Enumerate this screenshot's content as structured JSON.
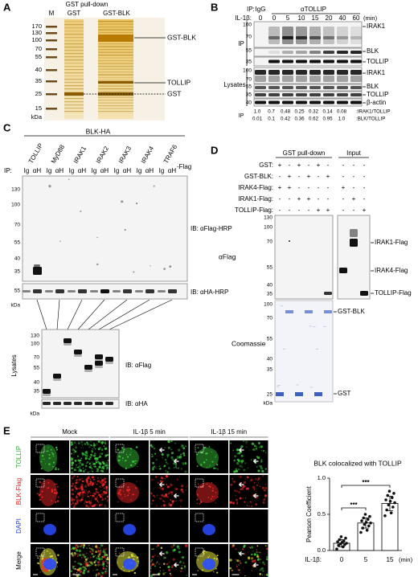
{
  "panel_a": {
    "label": "A",
    "title": "GST pull-down",
    "lanes": [
      "M",
      "GST",
      "GST-BLK"
    ],
    "markers": [
      170,
      130,
      100,
      70,
      55,
      40,
      35,
      25,
      15
    ],
    "unit": "kDa",
    "bands": [
      "GST-BLK",
      "TOLLIP",
      "GST"
    ]
  },
  "panel_b": {
    "label": "B",
    "ip_label": "IP:",
    "ip_groups": [
      "IgG",
      "αTOLLIP"
    ],
    "treatment_label": "IL-1β:",
    "times": [
      0,
      0,
      5,
      10,
      15,
      20,
      40,
      60
    ],
    "time_unit": "(min)",
    "sections": [
      "IP",
      "Lysates"
    ],
    "markers": [
      100,
      70,
      55,
      35,
      100,
      70,
      55,
      35,
      40
    ],
    "blots": [
      "IRAK1",
      "BLK",
      "TOLLIP",
      "IRAK1",
      "BLK",
      "TOLLIP",
      "β-actin"
    ],
    "ratio_ip_label": "IP",
    "ratios": [
      {
        "values": [
          "1.0",
          "0.7",
          "0.48",
          "0.25",
          "0.32",
          "0.14",
          "0.08"
        ],
        "label": ":IRAK1/TOLLIP"
      },
      {
        "values": [
          "0.01",
          "0.1",
          "0.42",
          "0.36",
          "0.62",
          "0.95",
          "1.0"
        ],
        "label": ":BLK/TOLLIP"
      }
    ]
  },
  "panel_c": {
    "label": "C",
    "construct": "BLK-HA",
    "baits": [
      "TOLLIP",
      "MyD88",
      "IRAK1",
      "IRAK2",
      "IRAK3",
      "IRAK4",
      "TRAF6"
    ],
    "tag": "-Flag",
    "ip_label": "IP:",
    "ip_lanes": [
      "Ig",
      "αH",
      "Ig",
      "αH",
      "Ig",
      "αH",
      "Ig",
      "αH",
      "Ig",
      "αH",
      "Ig",
      "αH",
      "Ig",
      "αH"
    ],
    "markers_flag": [
      130,
      100,
      70,
      55,
      40,
      35
    ],
    "markers_ha": [
      55
    ],
    "unit": "kDa",
    "ib": [
      "IB: αFlag-HRP",
      "IB: αHA-HRP"
    ],
    "lysates": {
      "label": "Lysates",
      "markers": [
        130,
        100,
        70,
        55,
        40,
        35
      ],
      "ib": [
        "IB: αFlag",
        "IB: αHA"
      ],
      "unit": "kDa"
    }
  },
  "panel_d": {
    "label": "D",
    "groups": [
      "GST pull-down",
      "Input"
    ],
    "rows": [
      {
        "name": "GST:",
        "signs": [
          "+",
          "-",
          "+",
          "-",
          "+",
          "-",
          "-",
          "-",
          "-"
        ]
      },
      {
        "name": "GST-BLK:",
        "signs": [
          "-",
          "+",
          "-",
          "+",
          "-",
          "+",
          "-",
          "-",
          "-"
        ]
      },
      {
        "name": "IRAK4-Flag:",
        "signs": [
          "+",
          "+",
          "-",
          "-",
          "-",
          "-",
          "+",
          "-",
          "-"
        ]
      },
      {
        "name": "IRAK1-Flag:",
        "signs": [
          "-",
          "-",
          "+",
          "+",
          "-",
          "-",
          "-",
          "+",
          "-"
        ]
      },
      {
        "name": "TOLLIP-Flag:",
        "signs": [
          "-",
          "-",
          "-",
          "-",
          "+",
          "+",
          "-",
          "-",
          "+"
        ]
      }
    ],
    "blot_label": "αFlag",
    "stain_label": "Coomassie",
    "markers_blot": [
      130,
      100,
      70,
      55,
      40,
      35
    ],
    "markers_stain": [
      100,
      70,
      55,
      40,
      35,
      25
    ],
    "unit": "kDa",
    "blot_bands": [
      "IRAK1-Flag",
      "IRAK4-Flag",
      "TOLLIP-Flag"
    ],
    "stain_bands": [
      "GST-BLK",
      "GST"
    ]
  },
  "panel_e": {
    "label": "E",
    "conditions": [
      "Mock",
      "IL-1β 5 min",
      "IL-1β 15 min"
    ],
    "channels": [
      "TOLLIP",
      "BLK-Flag",
      "DAPI",
      "Merge"
    ]
  },
  "chart_data": {
    "type": "bar",
    "title": "BLK colocalized with TOLLIP",
    "y_label": "Pearson Coefficient",
    "x_label": "IL-1β:",
    "x_unit": "(min)",
    "categories": [
      0,
      5,
      15
    ],
    "values": [
      0.1,
      0.38,
      0.65
    ],
    "errors": [
      0.05,
      0.07,
      0.1
    ],
    "points": [
      [
        0.02,
        0.05,
        0.07,
        0.08,
        0.09,
        0.1,
        0.11,
        0.12,
        0.13,
        0.15,
        0.17,
        0.19
      ],
      [
        0.25,
        0.28,
        0.31,
        0.34,
        0.36,
        0.38,
        0.39,
        0.41,
        0.43,
        0.45,
        0.47,
        0.5
      ],
      [
        0.48,
        0.52,
        0.56,
        0.6,
        0.63,
        0.66,
        0.68,
        0.7,
        0.73,
        0.76,
        0.79,
        0.82
      ]
    ],
    "ylim": [
      0,
      1.0
    ],
    "yticks": [
      {
        "value": 0,
        "label": "0.0"
      },
      {
        "value": 0.5,
        "label": "0.5"
      },
      {
        "value": 1.0,
        "label": "1.0"
      }
    ],
    "significance": [
      "***",
      "***"
    ],
    "color": "#ffffff"
  }
}
